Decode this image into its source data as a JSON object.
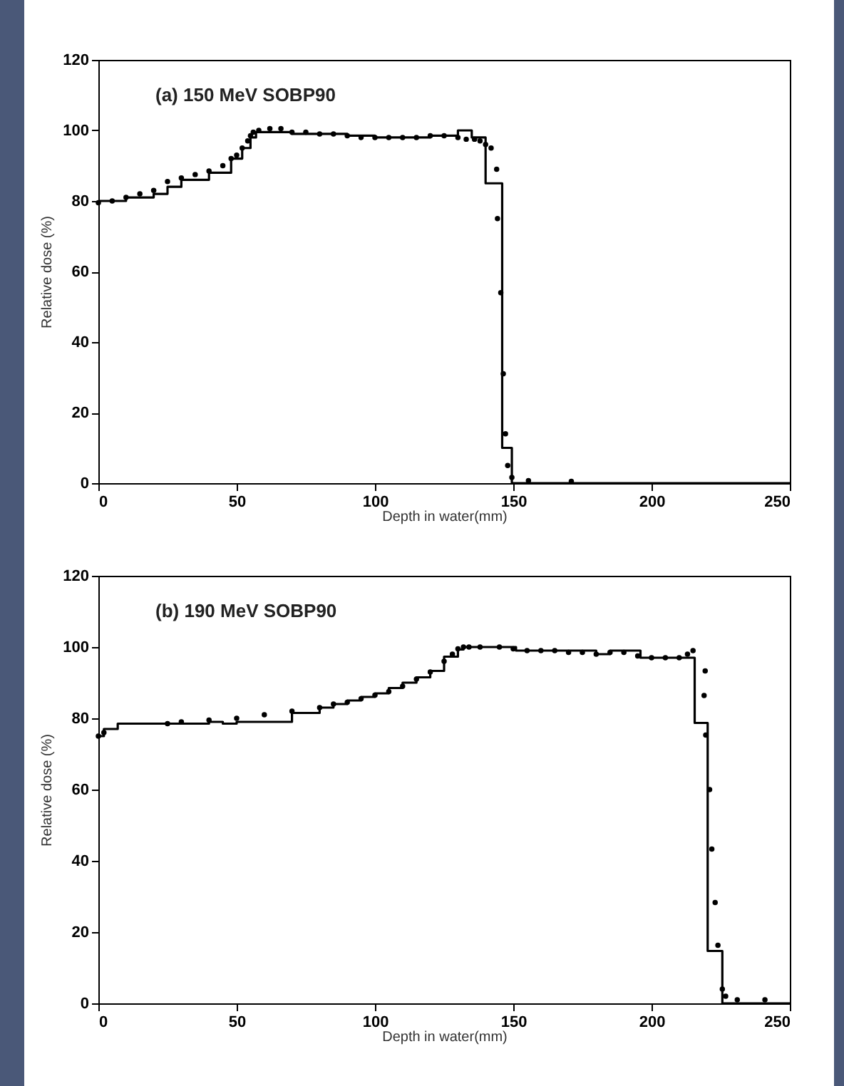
{
  "chart_data": [
    {
      "type": "step",
      "title": "(a) 150 MeV SOBP90",
      "xlabel": "Depth in water(mm)",
      "ylabel": "Relative dose (%)",
      "xlim": [
        0,
        250
      ],
      "xticks": [
        0,
        50,
        100,
        150,
        200,
        250
      ],
      "ylim": [
        0,
        120
      ],
      "yticks": [
        0,
        20,
        40,
        60,
        80,
        100,
        120
      ],
      "grid": false,
      "series": [
        {
          "color": "#000000",
          "line_style": "solid",
          "x": [
            0,
            10,
            20,
            25,
            30,
            40,
            48,
            52,
            55,
            57,
            70,
            90,
            100,
            120,
            130,
            135,
            140,
            146,
            149.5,
            250
          ],
          "values": [
            80,
            81,
            82,
            84,
            86,
            88,
            92,
            95,
            98,
            99.5,
            99,
            98.5,
            98,
            98.5,
            100,
            98,
            85,
            10,
            0,
            0
          ]
        },
        {
          "type": "scatter",
          "color": "#000000",
          "marker": "circle",
          "x": [
            0,
            5,
            10,
            15,
            20,
            25,
            30,
            35,
            40,
            45,
            48,
            50,
            52,
            54,
            55,
            56,
            58,
            62,
            66,
            70,
            75,
            80,
            85,
            90,
            95,
            100,
            105,
            110,
            115,
            120,
            125,
            130,
            133,
            136,
            138,
            140,
            142,
            144,
            144.3,
            145.5,
            146.4,
            147.2,
            148,
            149.5,
            155.5,
            171
          ],
          "values": [
            79.5,
            80,
            81,
            82,
            83,
            85.5,
            86.5,
            87.5,
            88.5,
            90,
            92,
            93,
            95,
            97,
            98.5,
            99.5,
            100,
            100.5,
            100.5,
            99.5,
            99.5,
            99,
            99,
            98.5,
            98,
            98,
            98,
            98,
            98,
            98.5,
            98.5,
            98,
            97.5,
            97.5,
            97,
            96,
            95,
            89,
            75,
            54,
            31,
            14,
            5,
            1.6,
            0.7,
            0.5
          ]
        }
      ]
    },
    {
      "type": "step",
      "title": "(b) 190 MeV SOBP90",
      "xlabel": "Depth in water(mm)",
      "ylabel": "Relative dose (%)",
      "xlim": [
        0,
        250
      ],
      "xticks": [
        0,
        50,
        100,
        150,
        200,
        250
      ],
      "ylim": [
        0,
        120
      ],
      "yticks": [
        0,
        20,
        40,
        60,
        80,
        100,
        120
      ],
      "grid": false,
      "series": [
        {
          "color": "#000000",
          "line_style": "solid",
          "x": [
            0,
            2,
            7,
            40,
            45,
            50,
            70,
            80,
            85,
            90,
            95,
            100,
            105,
            110,
            115,
            120,
            125,
            130,
            132,
            151,
            180,
            185,
            196,
            215.6,
            220.3,
            225.6,
            250
          ],
          "values": [
            75,
            77,
            78.5,
            79,
            78.5,
            79,
            81.5,
            83,
            84,
            85,
            86,
            87,
            88.5,
            90,
            91.5,
            93.3,
            97.3,
            99.3,
            100,
            99,
            98,
            99,
            97,
            78.7,
            14.7,
            0,
            0
          ]
        },
        {
          "type": "scatter",
          "color": "#000000",
          "marker": "circle",
          "x": [
            0,
            2,
            25,
            30,
            40,
            50,
            60,
            70,
            80,
            85,
            90,
            95,
            100,
            105,
            110,
            115,
            120,
            125,
            128,
            130,
            132,
            134,
            138,
            145,
            150,
            155,
            160,
            165,
            170,
            175,
            180,
            185,
            190,
            195,
            200,
            205,
            210,
            213,
            215,
            219.4,
            219,
            219.6,
            221,
            221.8,
            223,
            224,
            225.6,
            226.8,
            231,
            241
          ],
          "values": [
            75,
            76,
            78.5,
            79,
            79.5,
            80,
            81,
            82,
            83,
            84,
            84.5,
            85.5,
            86.5,
            87.5,
            89,
            91,
            93,
            96,
            98,
            99.5,
            100,
            100,
            100,
            100,
            99.5,
            99,
            99,
            99,
            98.5,
            98.5,
            98,
            98.5,
            98.5,
            97.5,
            97,
            97,
            97,
            98,
            99,
            93.3,
            86.4,
            75.3,
            60,
            43.3,
            28.3,
            16.3,
            4,
            2,
            1,
            1
          ]
        }
      ]
    }
  ]
}
